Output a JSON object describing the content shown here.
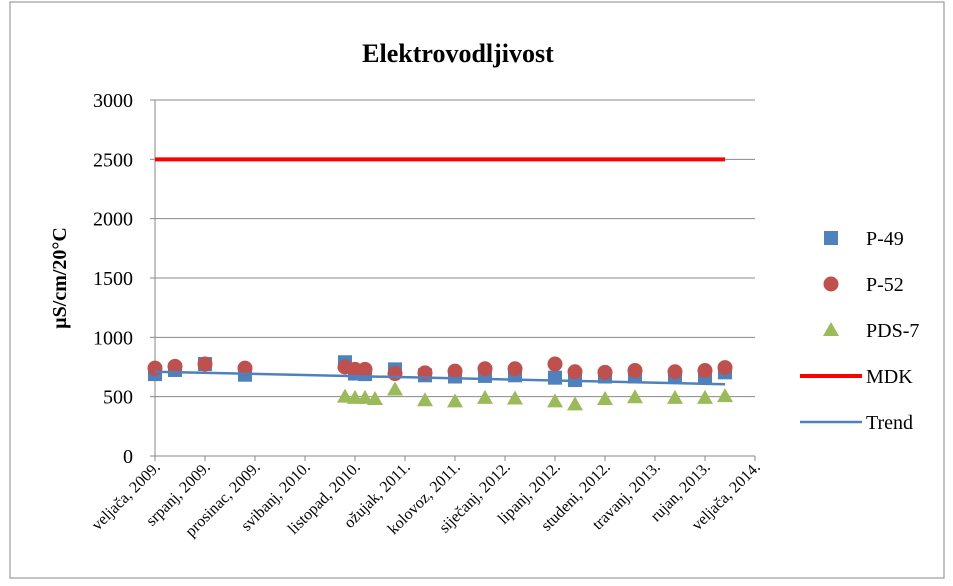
{
  "chart_data": {
    "type": "scatter",
    "title": "Elektrovodljivost",
    "y_label": "µS/cm/20°C",
    "xlim": [
      "2009-02",
      "2014-02"
    ],
    "xticks": [
      {
        "value": "2009-02",
        "label": "veljača, 2009."
      },
      {
        "value": "2009-07",
        "label": "srpanj, 2009."
      },
      {
        "value": "2009-12",
        "label": "prosinac, 2009."
      },
      {
        "value": "2010-05",
        "label": "svibanj, 2010."
      },
      {
        "value": "2010-10",
        "label": "listopad, 2010."
      },
      {
        "value": "2011-03",
        "label": "ožujak, 2011."
      },
      {
        "value": "2011-08",
        "label": "kolovoz, 2011."
      },
      {
        "value": "2012-01",
        "label": "siječanj, 2012."
      },
      {
        "value": "2012-06",
        "label": "lipanj, 2012."
      },
      {
        "value": "2012-11",
        "label": "studeni, 2012."
      },
      {
        "value": "2013-04",
        "label": "travanj, 2013."
      },
      {
        "value": "2013-09",
        "label": "rujan, 2013."
      },
      {
        "value": "2014-02",
        "label": "veljača, 2014."
      }
    ],
    "ylim": [
      0,
      3000
    ],
    "yticks": [
      0,
      500,
      1000,
      1500,
      2000,
      2500,
      3000
    ],
    "grid": true,
    "legend": "right",
    "series": [
      {
        "name": "P-49",
        "color": "#4f81bd",
        "marker": "square",
        "x": [
          "2009-02",
          "2009-04",
          "2009-07",
          "2009-11",
          "2010-09",
          "2010-10",
          "2010-11",
          "2011-02",
          "2011-05",
          "2011-08",
          "2011-11",
          "2012-02",
          "2012-06",
          "2012-08",
          "2012-11",
          "2013-02",
          "2013-06",
          "2013-09",
          "2013-11"
        ],
        "values": [
          690,
          725,
          775,
          685,
          790,
          695,
          690,
          730,
          680,
          670,
          675,
          680,
          660,
          640,
          670,
          670,
          675,
          665,
          705
        ]
      },
      {
        "name": "P-52",
        "color": "#c0504d",
        "marker": "circle",
        "x": [
          "2009-02",
          "2009-04",
          "2009-07",
          "2009-11",
          "2010-09",
          "2010-10",
          "2010-11",
          "2011-02",
          "2011-05",
          "2011-08",
          "2011-11",
          "2012-02",
          "2012-06",
          "2012-08",
          "2012-11",
          "2013-02",
          "2013-06",
          "2013-09",
          "2013-11"
        ],
        "values": [
          740,
          755,
          775,
          740,
          750,
          730,
          730,
          695,
          700,
          715,
          735,
          735,
          775,
          710,
          705,
          720,
          710,
          720,
          745
        ]
      },
      {
        "name": "PDS-7",
        "color": "#9bbb59",
        "marker": "triangle",
        "x": [
          "2010-09",
          "2010-10",
          "2010-11",
          "2010-12",
          "2011-02",
          "2011-05",
          "2011-08",
          "2011-11",
          "2012-02",
          "2012-06",
          "2012-08",
          "2012-11",
          "2013-02",
          "2013-06",
          "2013-09",
          "2013-11"
        ],
        "values": [
          500,
          490,
          490,
          480,
          560,
          470,
          460,
          490,
          485,
          460,
          435,
          480,
          495,
          490,
          490,
          505
        ]
      },
      {
        "name": "MDK",
        "color": "#ff0000",
        "marker": "line",
        "width": 4,
        "x": [
          "2009-02",
          "2013-11"
        ],
        "values": [
          2500,
          2500
        ]
      },
      {
        "name": "Trend",
        "color": "#4f81bd",
        "marker": "line",
        "width": 2.5,
        "x": [
          "2009-02",
          "2013-11"
        ],
        "values": [
          710,
          605
        ]
      }
    ]
  }
}
